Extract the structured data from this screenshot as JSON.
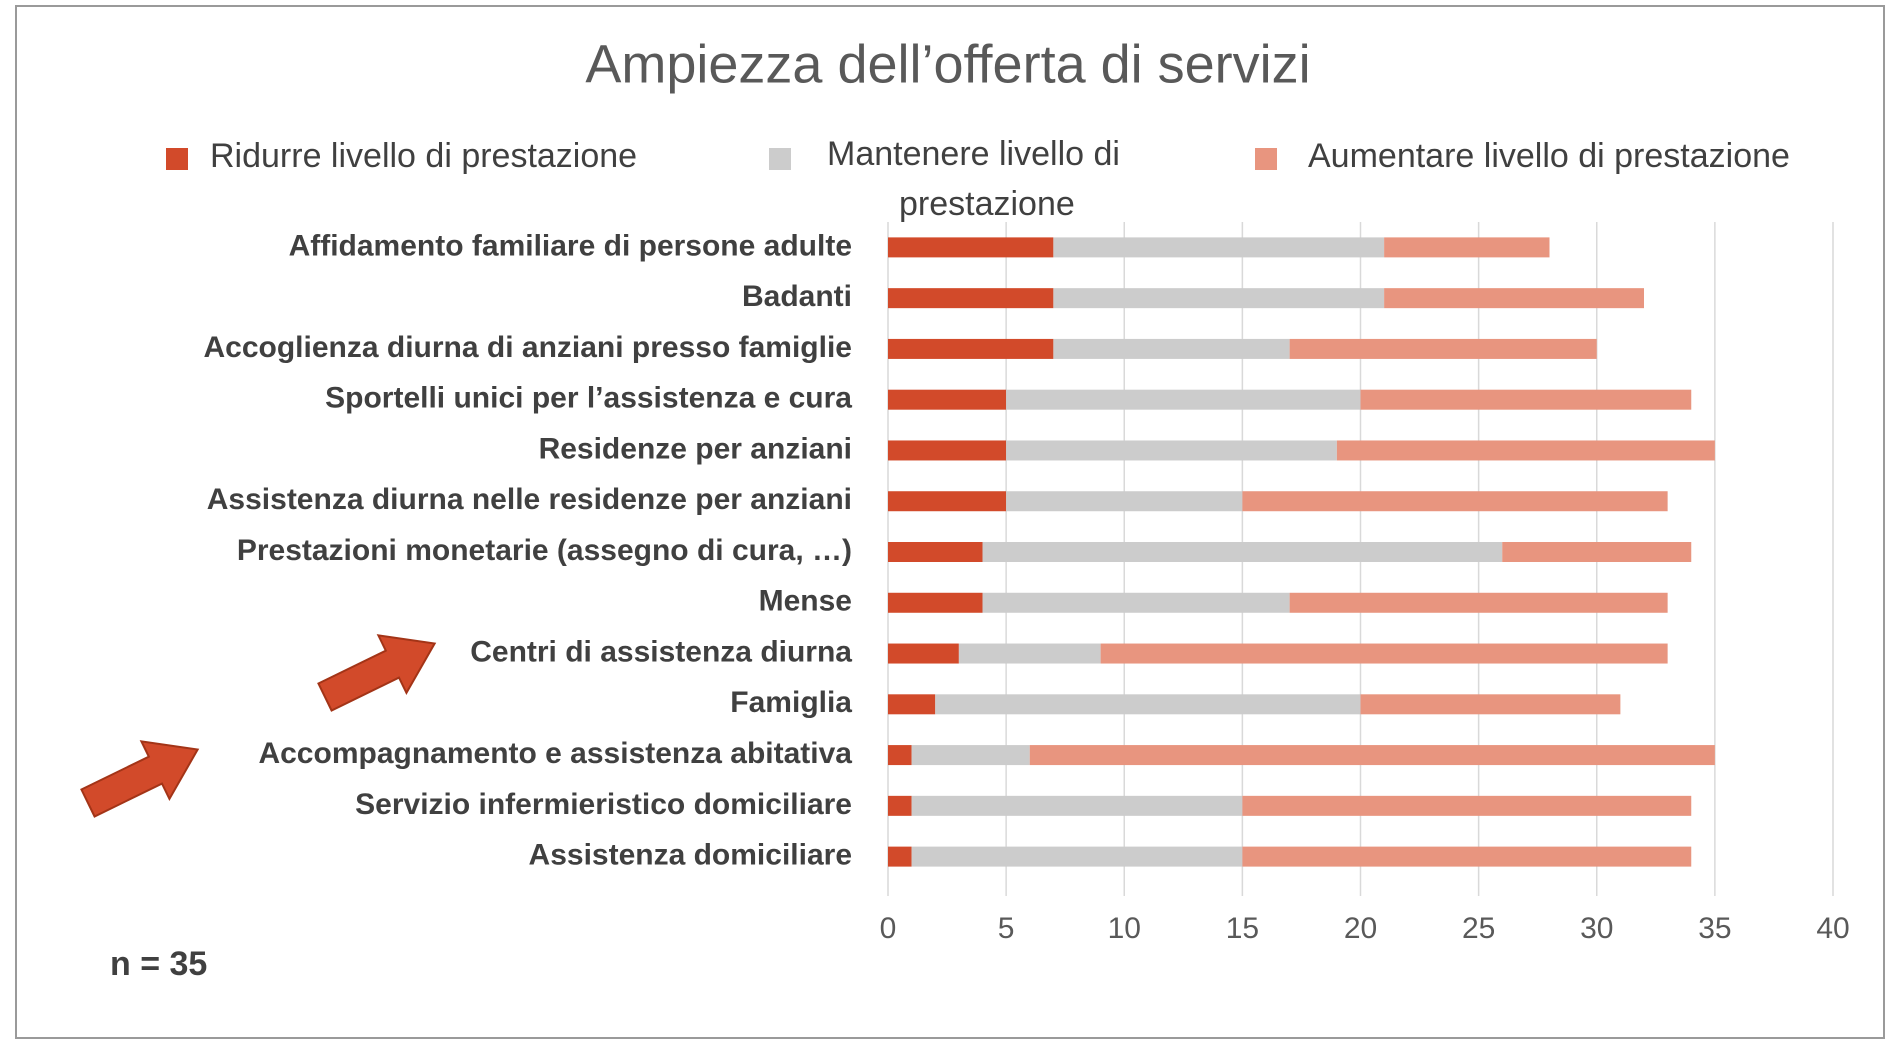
{
  "chart_data": {
    "type": "stacked_barh",
    "title": "Ampiezza dell’offerta di servizi",
    "categories": [
      "Affidamento familiare di persone adulte",
      "Badanti",
      "Accoglienza diurna di anziani presso famiglie",
      "Sportelli unici per l’assistenza e cura",
      "Residenze per anziani",
      "Assistenza diurna nelle residenze per anziani",
      "Prestazioni monetarie (assegno di cura, …)",
      "Mense",
      "Centri di assistenza diurna",
      "Famiglia",
      "Accompagnamento e assistenza abitativa",
      "Servizio infermieristico domiciliare",
      "Assistenza domiciliare"
    ],
    "series": [
      {
        "name": "Ridurre livello di prestazione",
        "color": "#d24a2a",
        "values": [
          7,
          7,
          7,
          5,
          5,
          5,
          4,
          4,
          3,
          2,
          1,
          1,
          1
        ]
      },
      {
        "name": "Mantenere livello di prestazione",
        "color": "#cccccc",
        "values": [
          14,
          14,
          10,
          15,
          14,
          10,
          22,
          13,
          6,
          18,
          5,
          14,
          14
        ]
      },
      {
        "name": "Aumentare livello di prestazione",
        "color": "#e8957f",
        "values": [
          7,
          11,
          13,
          14,
          16,
          18,
          8,
          16,
          24,
          11,
          29,
          19,
          19
        ]
      }
    ],
    "xlim": [
      0,
      40
    ],
    "xticks": [
      0,
      5,
      10,
      15,
      20,
      25,
      30,
      35,
      40
    ],
    "grid": true,
    "legend": "top",
    "annotation": "n = 35"
  }
}
